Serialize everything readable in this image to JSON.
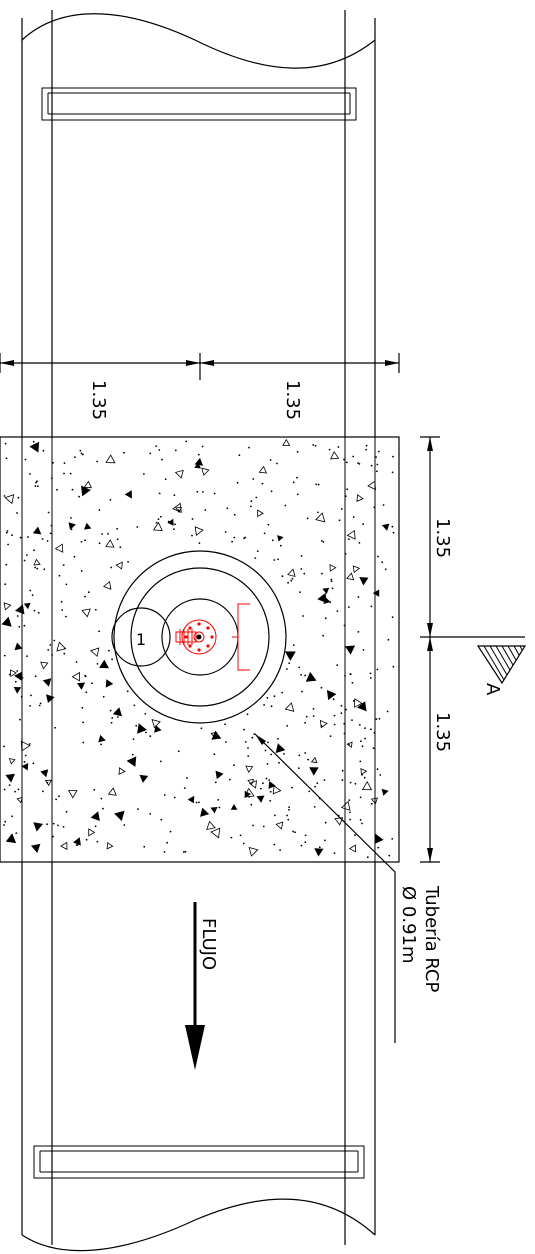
{
  "dimensions": {
    "top_left": "1.35",
    "top_right": "1.35",
    "right_upper": "1.35",
    "right_lower": "1.35"
  },
  "section_marker": "A",
  "pipe_callout": {
    "line1": "Tubería RCP",
    "line2": "Ø 0.91m"
  },
  "flow_label": "FLUJO",
  "detail_number": "1",
  "colors": {
    "lines": "#000000",
    "detail": "#ff0000",
    "background": "#ffffff"
  }
}
